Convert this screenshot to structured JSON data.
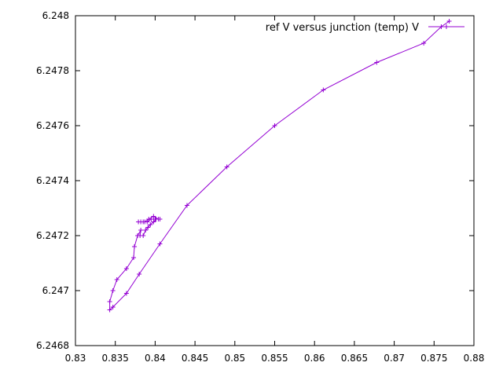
{
  "chart_data": {
    "type": "line",
    "title": "",
    "xlabel": "",
    "ylabel": "",
    "xlim": [
      0.83,
      0.88
    ],
    "ylim": [
      6.2468,
      6.248
    ],
    "xticks": [
      0.83,
      0.835,
      0.84,
      0.845,
      0.85,
      0.855,
      0.86,
      0.865,
      0.87,
      0.875,
      0.88
    ],
    "yticks": [
      6.2468,
      6.247,
      6.2472,
      6.2474,
      6.2476,
      6.2478,
      6.248
    ],
    "xtick_labels": [
      "0.83",
      "0.835",
      "0.84",
      "0.845",
      "0.85",
      "0.855",
      "0.86",
      "0.865",
      "0.87",
      "0.875",
      "0.88"
    ],
    "ytick_labels": [
      "6.2468",
      "6.247",
      "6.2472",
      "6.2474",
      "6.2476",
      "6.2478",
      "6.248"
    ],
    "grid": false,
    "legend_position": "top-right",
    "series": [
      {
        "name": "ref V versus junction (temp) V",
        "color": "#9400D3",
        "marker": "plus",
        "points": [
          [
            0.8769,
            6.24798
          ],
          [
            0.8759,
            6.24796
          ],
          [
            0.8737,
            6.2479
          ],
          [
            0.8678,
            6.24783
          ],
          [
            0.8611,
            6.24773
          ],
          [
            0.855,
            6.2476
          ],
          [
            0.849,
            6.24745
          ],
          [
            0.844,
            6.24731
          ],
          [
            0.8406,
            6.24717
          ],
          [
            0.838,
            6.24706
          ],
          [
            0.8364,
            6.24699
          ],
          [
            0.8347,
            6.24694
          ],
          [
            0.8343,
            6.24693
          ],
          [
            0.8343,
            6.24696
          ],
          [
            0.8347,
            6.247
          ],
          [
            0.8352,
            6.24704
          ],
          [
            0.8364,
            6.24708
          ],
          [
            0.8373,
            6.24712
          ],
          [
            0.8374,
            6.24716
          ],
          [
            0.8378,
            6.2472
          ],
          [
            0.8382,
            6.24722
          ],
          [
            0.8381,
            6.2472
          ],
          [
            0.8385,
            6.2472
          ],
          [
            0.8388,
            6.24722
          ],
          [
            0.8391,
            6.24723
          ],
          [
            0.8394,
            6.24724
          ],
          [
            0.8398,
            6.24725
          ],
          [
            0.8401,
            6.24726
          ],
          [
            0.8404,
            6.24726
          ],
          [
            0.8398,
            6.24727
          ],
          [
            0.8392,
            6.24726
          ],
          [
            0.8387,
            6.24725
          ],
          [
            0.8382,
            6.24725
          ],
          [
            0.8379,
            6.24725
          ],
          [
            0.8385,
            6.24725
          ],
          [
            0.839,
            6.24725
          ],
          [
            0.8395,
            6.24726
          ],
          [
            0.84,
            6.24726
          ],
          [
            0.8406,
            6.24726
          ]
        ]
      }
    ]
  }
}
